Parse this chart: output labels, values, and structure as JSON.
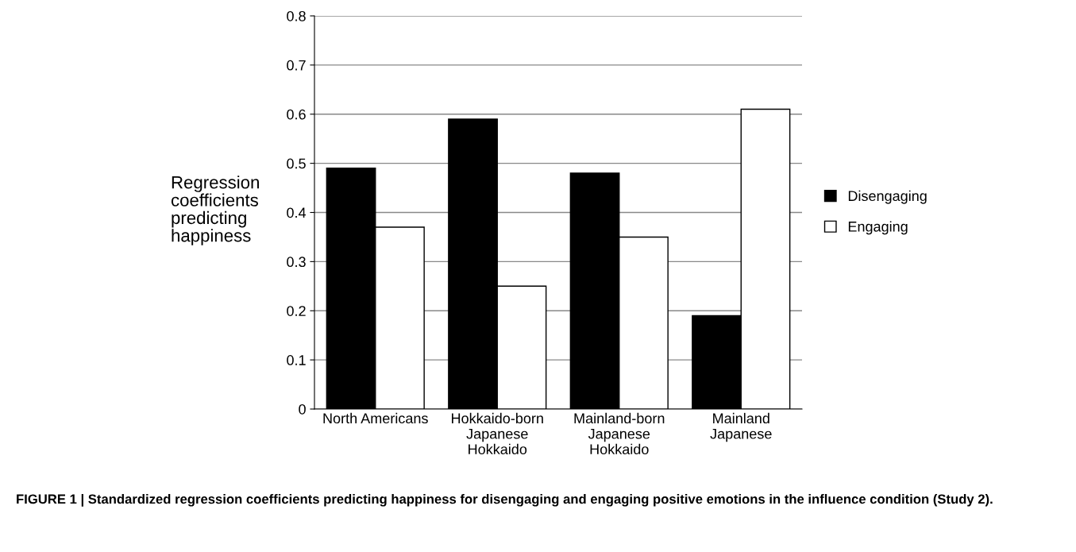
{
  "chart_data": {
    "type": "bar",
    "categories": [
      "North Americans",
      "Hokkaido-born\nJapanese\nHokkaido",
      "Mainland-born\nJapanese\nHokkaido",
      "Mainland\nJapanese"
    ],
    "series": [
      {
        "name": "Disengaging",
        "color": "#000000",
        "values": [
          0.49,
          0.59,
          0.48,
          0.19
        ]
      },
      {
        "name": "Engaging",
        "color": "#ffffff",
        "values": [
          0.37,
          0.25,
          0.35,
          0.61
        ]
      }
    ],
    "ylabel": "Regression\ncoefficients\npredicting\nhappiness",
    "ylim": [
      0,
      0.8
    ],
    "yticks": [
      0,
      0.1,
      0.2,
      0.3,
      0.4,
      0.5,
      0.6,
      0.7,
      0.8
    ],
    "grid": "y",
    "legend": "right",
    "annotations": [
      "FIGURE 1 | Standardized regression coefficients predicting happiness for disengaging and engaging positive emotions in the influence condition (Study 2)."
    ]
  }
}
